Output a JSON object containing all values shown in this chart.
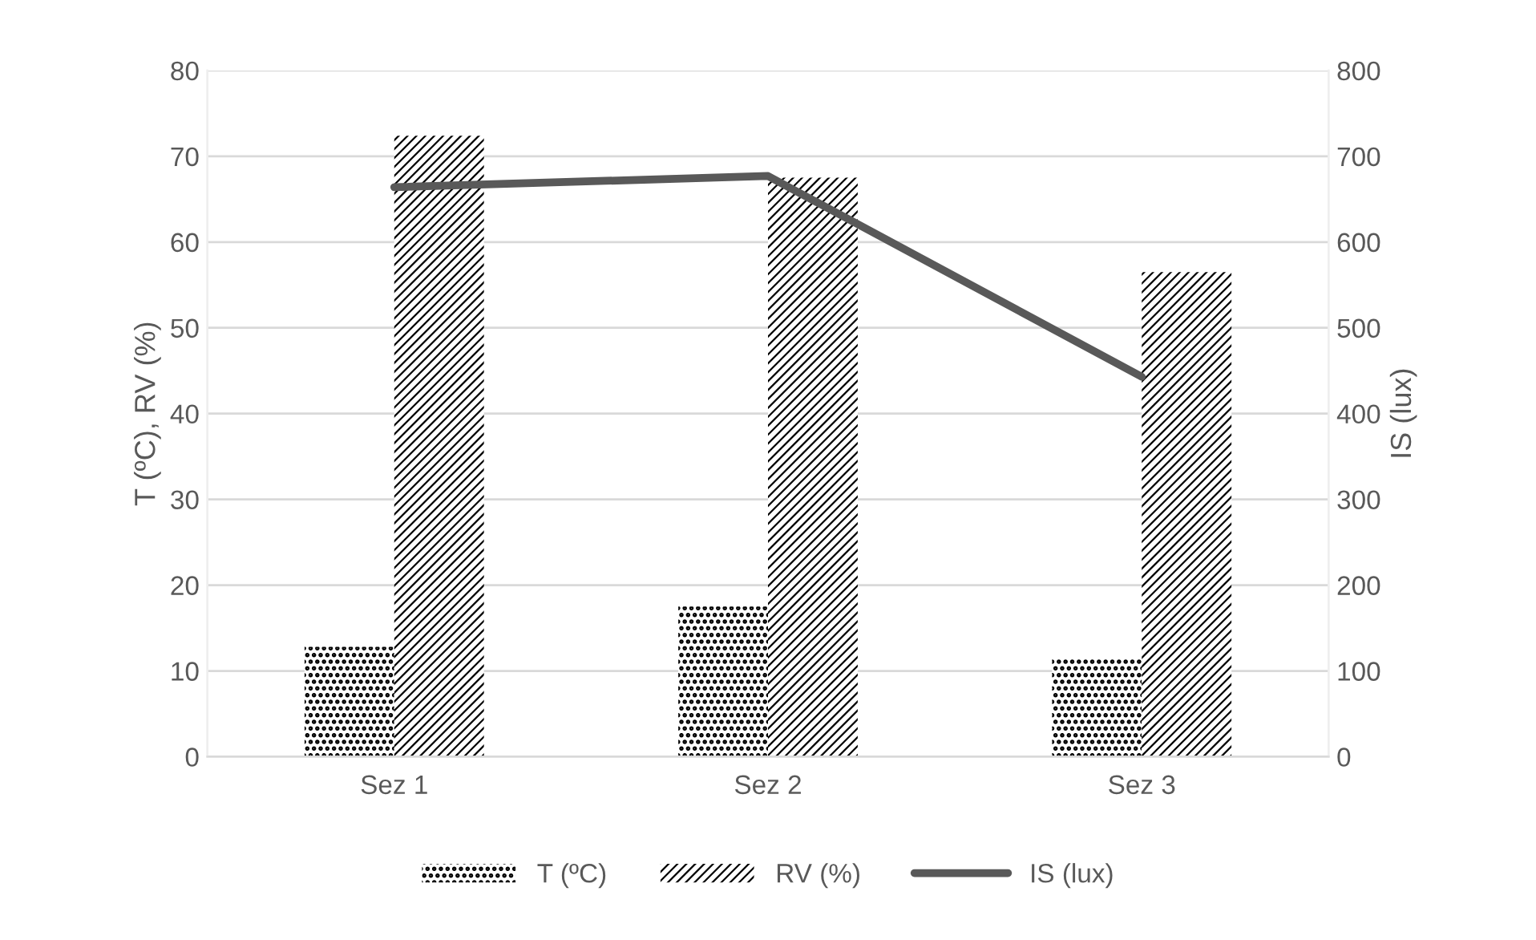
{
  "chart_data": {
    "type": "bar",
    "categories": [
      "Sez 1",
      "Sez 2",
      "Sez 3"
    ],
    "series": [
      {
        "name": "T (ºC)",
        "color": "#000000",
        "values": [
          12.8,
          17.5,
          11.5
        ]
      },
      {
        "name": "RV (%)",
        "color": "#000000",
        "values": [
          72.4,
          67.5,
          56.5
        ]
      },
      {
        "name": "IS (lux)",
        "type": "line",
        "axis": "y2",
        "color": "#595959",
        "values": [
          664,
          677,
          443
        ]
      }
    ],
    "ylabel": "T (ºC), RV (%)",
    "y2label": "IS (lux)",
    "ylim": [
      0,
      80
    ],
    "yticks": [
      0,
      10,
      20,
      30,
      40,
      50,
      60,
      70,
      80
    ],
    "y2lim": [
      0,
      800
    ],
    "y2ticks": [
      0,
      100,
      200,
      300,
      400,
      500,
      600,
      700,
      800
    ],
    "grid": "y",
    "legend": "bottom",
    "marker": "none",
    "line_style": "solid"
  }
}
